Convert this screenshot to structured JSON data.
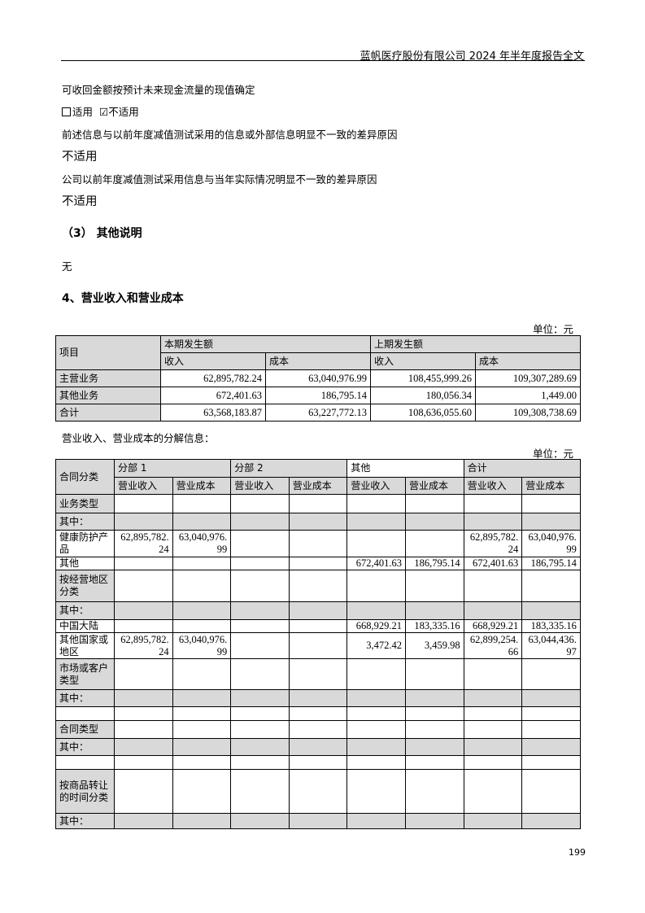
{
  "header": {
    "title": "蓝帆医疗股份有限公司 2024 年半年度报告全文"
  },
  "body": {
    "p1": "可收回金额按预计未来现金流量的现值确定",
    "opt_applicable": "适用",
    "opt_not_applicable": "不适用",
    "opt_checked": "not_applicable",
    "p2": "前述信息与以前年度减值测试采用的信息或外部信息明显不一致的差异原因",
    "p2_answer": "不适用",
    "p3": "公司以前年度减值测试采用信息与当年实际情况明显不一致的差异原因",
    "p3_answer": "不适用",
    "sec3_title": "（3） 其他说明",
    "sec3_body": "无",
    "sec4_title": "4、营业收入和营业成本",
    "unit1": "单位：元",
    "table2_caption": "营业收入、营业成本的分解信息：",
    "unit2": "单位：元"
  },
  "table1": {
    "header_item": "项目",
    "groups": [
      "本期发生额",
      "上期发生额"
    ],
    "subheaders": [
      "收入",
      "成本",
      "收入",
      "成本"
    ],
    "rows": [
      {
        "label": "主营业务",
        "values": [
          "62,895,782.24",
          "63,040,976.99",
          "108,455,999.26",
          "109,307,289.69"
        ]
      },
      {
        "label": "其他业务",
        "values": [
          "672,401.63",
          "186,795.14",
          "180,056.34",
          "1,449.00"
        ]
      },
      {
        "label": "合计",
        "values": [
          "63,568,183.87",
          "63,227,772.13",
          "108,636,055.60",
          "109,308,738.69"
        ]
      }
    ]
  },
  "table2": {
    "header_item": "合同分类",
    "groups": [
      "分部 1",
      "分部 2",
      "其他",
      "合计"
    ],
    "subheaders": [
      "营业收入",
      "营业成本",
      "营业收入",
      "营业成本",
      "营业收入",
      "营业成本",
      "营业收入",
      "营业成本"
    ],
    "rows": [
      {
        "label": "业务类型",
        "type": "category",
        "values": [
          "",
          "",
          "",
          "",
          "",
          "",
          "",
          ""
        ]
      },
      {
        "label": "其中：",
        "type": "sub",
        "values": [
          "",
          "",
          "",
          "",
          "",
          "",
          "",
          ""
        ]
      },
      {
        "label": "健康防护产品",
        "type": "data",
        "values": [
          "62,895,782.24",
          "63,040,976.99",
          "",
          "",
          "",
          "",
          "62,895,782.24",
          "63,040,976.99"
        ]
      },
      {
        "label": "其他",
        "type": "data",
        "values": [
          "",
          "",
          "",
          "",
          "672,401.63",
          "186,795.14",
          "672,401.63",
          "186,795.14"
        ]
      },
      {
        "label": "按经营地区分类",
        "type": "category",
        "values": [
          "",
          "",
          "",
          "",
          "",
          "",
          "",
          ""
        ]
      },
      {
        "label": "其中：",
        "type": "sub",
        "values": [
          "",
          "",
          "",
          "",
          "",
          "",
          "",
          ""
        ]
      },
      {
        "label": "中国大陆",
        "type": "data",
        "values": [
          "",
          "",
          "",
          "",
          "668,929.21",
          "183,335.16",
          "668,929.21",
          "183,335.16"
        ]
      },
      {
        "label": "其他国家或地区",
        "type": "data",
        "values": [
          "62,895,782.24",
          "63,040,976.99",
          "",
          "",
          "3,472.42",
          "3,459.98",
          "62,899,254.66",
          "63,044,436.97"
        ]
      },
      {
        "label": "市场或客户类型",
        "type": "category",
        "values": [
          "",
          "",
          "",
          "",
          "",
          "",
          "",
          ""
        ]
      },
      {
        "label": "其中：",
        "type": "sub",
        "values": [
          "",
          "",
          "",
          "",
          "",
          "",
          "",
          ""
        ]
      },
      {
        "label": "",
        "type": "data",
        "values": [
          "",
          "",
          "",
          "",
          "",
          "",
          "",
          ""
        ]
      },
      {
        "label": "合同类型",
        "type": "category",
        "values": [
          "",
          "",
          "",
          "",
          "",
          "",
          "",
          ""
        ]
      },
      {
        "label": "其中：",
        "type": "sub",
        "values": [
          "",
          "",
          "",
          "",
          "",
          "",
          "",
          ""
        ]
      },
      {
        "label": "",
        "type": "data",
        "values": [
          "",
          "",
          "",
          "",
          "",
          "",
          "",
          ""
        ]
      },
      {
        "label": "按商品转让的时间分类",
        "type": "category",
        "values": [
          "",
          "",
          "",
          "",
          "",
          "",
          "",
          ""
        ]
      },
      {
        "label": "其中：",
        "type": "sub",
        "values": [
          "",
          "",
          "",
          "",
          "",
          "",
          "",
          ""
        ]
      }
    ]
  },
  "footer": {
    "page_number": "199"
  }
}
